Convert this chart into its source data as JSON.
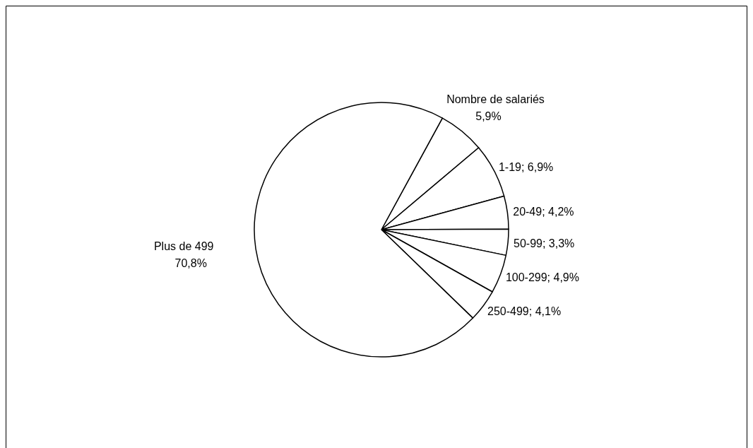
{
  "chart_data": {
    "type": "pie",
    "categories": [
      "Nombre de salariés",
      "1-19",
      "20-49",
      "50-99",
      "100-299",
      "250-499",
      "Plus de 499"
    ],
    "values": [
      5.9,
      6.9,
      4.2,
      3.3,
      4.9,
      4.1,
      70.8
    ],
    "value_labels": [
      "5,9%",
      "6,9%",
      "4,2%",
      "3,3%",
      "4,9%",
      "4,1%",
      "70,8%"
    ],
    "colors": [
      "#ffffff",
      "#ffffff",
      "#ffffff",
      "#ffffff",
      "#ffffff",
      "#ffffff",
      "#ffffff"
    ]
  }
}
